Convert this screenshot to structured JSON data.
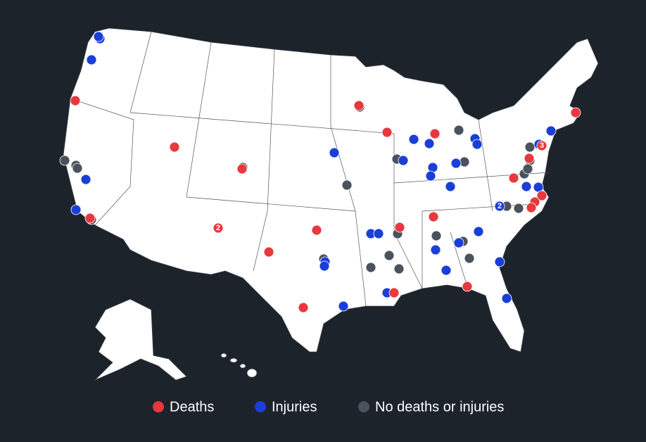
{
  "legend": [
    {
      "label": "Deaths",
      "color": "#e8383d"
    },
    {
      "label": "Injuries",
      "color": "#1a3fd6"
    },
    {
      "label": "No deaths or injuries",
      "color": "#4a525c"
    }
  ],
  "marker_labels": [
    "2",
    "2",
    "3"
  ]
}
